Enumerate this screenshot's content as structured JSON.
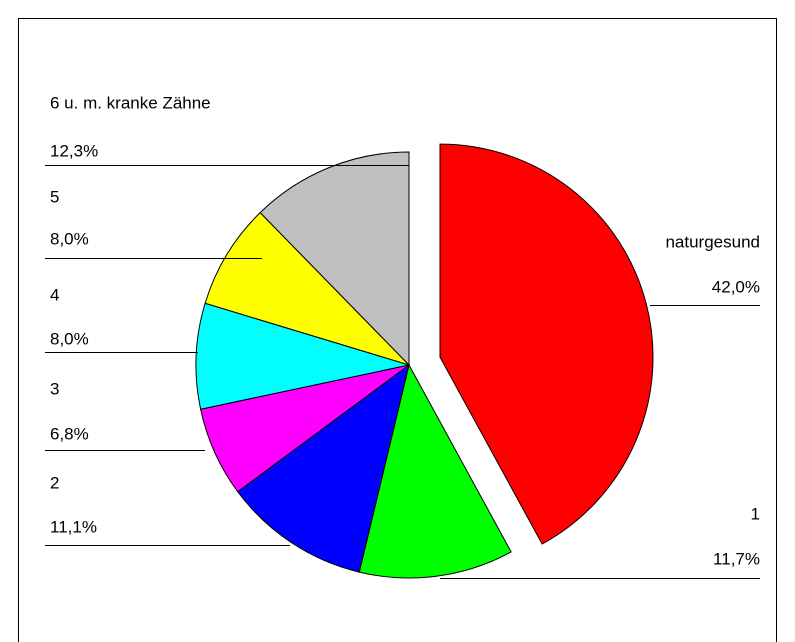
{
  "chart_data": {
    "type": "pie",
    "categories": [
      "naturgesund",
      "1",
      "2",
      "3",
      "4",
      "5",
      "6 u. m. kranke Zähne"
    ],
    "values": [
      42.0,
      11.7,
      11.1,
      6.8,
      8.0,
      8.0,
      12.3
    ],
    "value_labels": [
      "42,0%",
      "11,7%",
      "11,1%",
      "6,8%",
      "8,0%",
      "8,0%",
      "12,3%"
    ],
    "colors": [
      "#ff0000",
      "#00ff00",
      "#0000ff",
      "#ff00ff",
      "#00ffff",
      "#ffff00",
      "#c0c0c0"
    ],
    "exploded": [
      "naturgesund"
    ]
  }
}
